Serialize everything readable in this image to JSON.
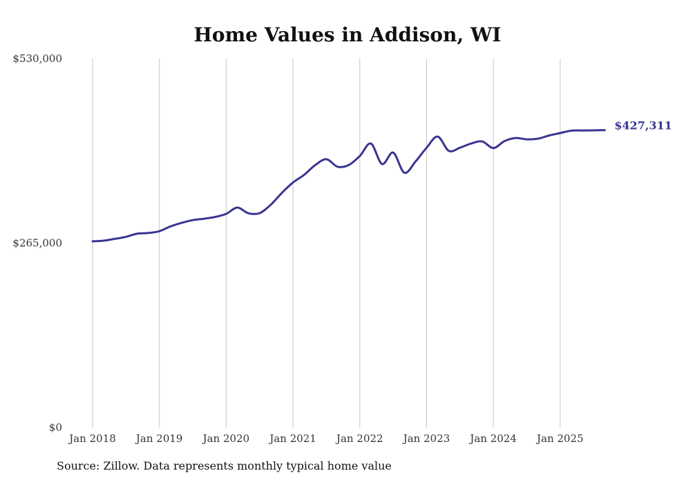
{
  "chart_data": {
    "type": "line",
    "title": "Home Values in Addison, WI",
    "xlabel": "",
    "ylabel": "",
    "ylim": [
      0,
      530000
    ],
    "yticks": [
      0,
      265000,
      530000
    ],
    "ytick_labels": [
      "$0",
      "$265,000",
      "$530,000"
    ],
    "xticks": [
      2018,
      2019,
      2020,
      2021,
      2022,
      2023,
      2024,
      2025
    ],
    "xtick_labels": [
      "Jan 2018",
      "Jan 2019",
      "Jan 2020",
      "Jan 2021",
      "Jan 2022",
      "Jan 2023",
      "Jan 2024",
      "Jan 2025"
    ],
    "xlim": [
      2018.0,
      2025.667
    ],
    "grid": "vertical",
    "color": "#3a3591",
    "end_label": "$427,311",
    "series": [
      {
        "name": "Typical home value",
        "x": [
          2018.0,
          2018.167,
          2018.333,
          2018.5,
          2018.667,
          2018.833,
          2019.0,
          2019.167,
          2019.333,
          2019.5,
          2019.667,
          2019.833,
          2020.0,
          2020.167,
          2020.333,
          2020.5,
          2020.667,
          2020.833,
          2021.0,
          2021.167,
          2021.333,
          2021.5,
          2021.667,
          2021.833,
          2022.0,
          2022.167,
          2022.333,
          2022.5,
          2022.667,
          2022.833,
          2023.0,
          2023.167,
          2023.333,
          2023.5,
          2023.667,
          2023.833,
          2024.0,
          2024.167,
          2024.333,
          2024.5,
          2024.667,
          2024.833,
          2025.0,
          2025.167,
          2025.333,
          2025.5,
          2025.667
        ],
        "values": [
          267500,
          268500,
          271000,
          274000,
          278500,
          279500,
          282000,
          289000,
          294000,
          298000,
          300000,
          302500,
          307000,
          316000,
          307800,
          308000,
          320000,
          337000,
          352000,
          363000,
          377000,
          385500,
          374700,
          377000,
          390000,
          408000,
          378500,
          395000,
          366000,
          382000,
          402000,
          418000,
          397500,
          402000,
          408000,
          411000,
          401500,
          411500,
          416000,
          414000,
          415000,
          419500,
          423000,
          426500,
          426800,
          427000,
          427311
        ]
      }
    ]
  },
  "footer": {
    "source": "Source: Zillow. Data represents monthly typical home value"
  }
}
